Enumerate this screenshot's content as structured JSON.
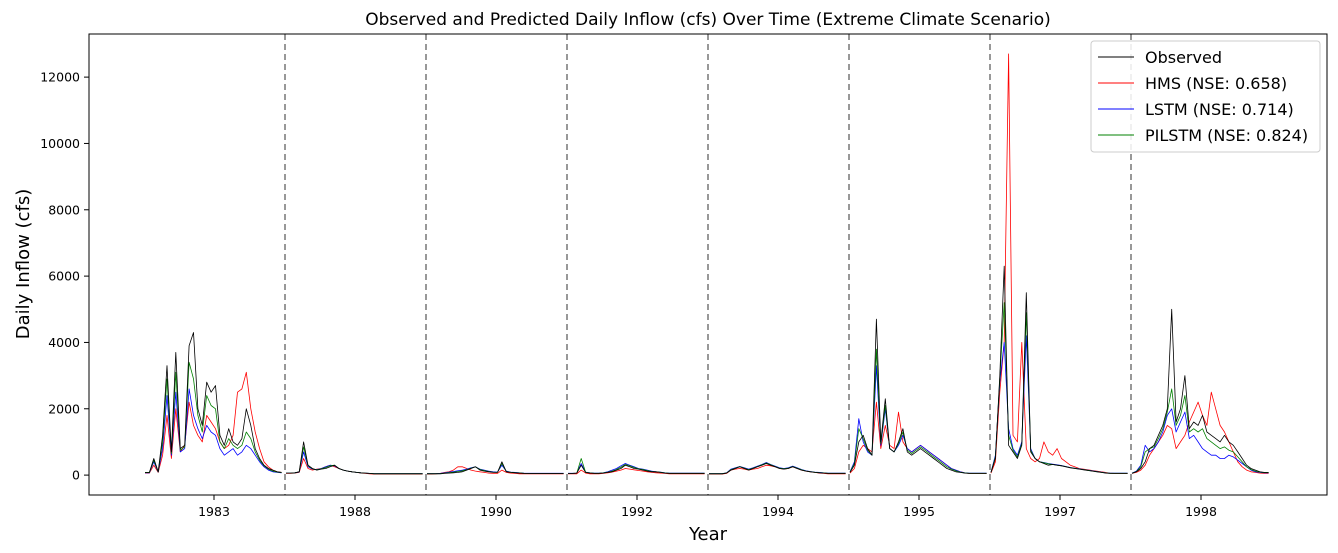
{
  "chart_data": {
    "type": "line",
    "title": "Observed and Predicted Daily Inflow (cfs) Over Time (Extreme Climate Scenario)",
    "xlabel": "Year",
    "ylabel": "Daily Inflow (cfs)",
    "ylim": [
      -600,
      13300
    ],
    "yticks": [
      0,
      2000,
      4000,
      6000,
      8000,
      10000,
      12000
    ],
    "x_tick_labels": [
      "1983",
      "1988",
      "1990",
      "1992",
      "1994",
      "1995",
      "1997",
      "1998"
    ],
    "n_periods": 8,
    "legend_position": "top-right",
    "grid": false,
    "series": [
      {
        "name": "Observed",
        "color": "#000000",
        "periods": [
          [
            80,
            80,
            500,
            100,
            1200,
            3300,
            700,
            3700,
            800,
            900,
            3900,
            4300,
            2000,
            1500,
            2800,
            2500,
            2700,
            1200,
            900,
            1400,
            1000,
            900,
            1100,
            2000,
            1500,
            800,
            500,
            300,
            200,
            150,
            100,
            80
          ],
          [
            60,
            60,
            70,
            100,
            1000,
            300,
            200,
            150,
            180,
            200,
            250,
            300,
            200,
            150,
            120,
            100,
            80,
            70,
            60,
            50,
            40,
            40,
            40,
            40,
            40,
            40,
            40,
            40,
            40,
            40,
            40,
            40
          ],
          [
            40,
            40,
            40,
            40,
            50,
            60,
            70,
            80,
            100,
            150,
            200,
            250,
            150,
            120,
            100,
            80,
            80,
            400,
            100,
            80,
            70,
            60,
            50,
            50,
            50,
            50,
            50,
            50,
            50,
            50,
            50,
            50
          ],
          [
            50,
            50,
            60,
            300,
            80,
            60,
            50,
            50,
            60,
            80,
            100,
            150,
            200,
            300,
            250,
            200,
            180,
            150,
            120,
            100,
            100,
            80,
            60,
            50,
            50,
            50,
            50,
            50,
            50,
            50,
            50,
            50
          ],
          [
            40,
            40,
            40,
            40,
            60,
            150,
            200,
            250,
            200,
            150,
            200,
            250,
            300,
            350,
            300,
            250,
            200,
            180,
            200,
            250,
            200,
            150,
            120,
            100,
            80,
            70,
            60,
            50,
            50,
            50,
            50,
            50
          ],
          [
            80,
            300,
            1000,
            1200,
            800,
            600,
            4700,
            1000,
            2300,
            800,
            700,
            1000,
            1400,
            700,
            600,
            700,
            800,
            700,
            600,
            500,
            400,
            300,
            200,
            150,
            100,
            80,
            60,
            50,
            50,
            50,
            50,
            50
          ],
          [
            80,
            500,
            3000,
            6300,
            900,
            700,
            500,
            900,
            5500,
            700,
            500,
            400,
            350,
            300,
            320,
            300,
            280,
            250,
            220,
            200,
            180,
            160,
            140,
            120,
            100,
            80,
            60,
            50,
            50,
            50,
            50,
            50
          ],
          [
            50,
            100,
            200,
            400,
            800,
            900,
            1200,
            1500,
            2000,
            5000,
            1600,
            2000,
            3000,
            1400,
            1600,
            1500,
            1800,
            1300,
            1200,
            1100,
            1000,
            1200,
            1000,
            900,
            700,
            500,
            300,
            200,
            150,
            100,
            80,
            80
          ]
        ]
      },
      {
        "name": "HMS (NSE: 0.658)",
        "color": "#ff0000",
        "periods": [
          [
            60,
            60,
            300,
            80,
            600,
            1800,
            500,
            2000,
            700,
            900,
            2200,
            1500,
            1200,
            1000,
            1800,
            1600,
            1400,
            1000,
            800,
            900,
            1200,
            2500,
            2600,
            3100,
            2000,
            1300,
            800,
            400,
            250,
            150,
            100,
            80
          ],
          [
            50,
            50,
            60,
            80,
            500,
            200,
            150,
            180,
            200,
            250,
            300,
            250,
            200,
            150,
            120,
            100,
            80,
            60,
            50,
            40,
            30,
            30,
            30,
            30,
            30,
            30,
            30,
            30,
            30,
            30,
            30,
            30
          ],
          [
            30,
            30,
            40,
            50,
            80,
            100,
            150,
            250,
            250,
            200,
            150,
            120,
            100,
            80,
            60,
            50,
            50,
            150,
            80,
            60,
            50,
            40,
            40,
            40,
            40,
            40,
            40,
            40,
            40,
            40,
            40,
            40
          ],
          [
            40,
            40,
            40,
            150,
            60,
            40,
            40,
            40,
            50,
            70,
            90,
            120,
            150,
            200,
            180,
            160,
            140,
            120,
            100,
            80,
            70,
            60,
            50,
            40,
            40,
            40,
            40,
            40,
            40,
            40,
            40,
            40
          ],
          [
            30,
            30,
            30,
            30,
            50,
            150,
            180,
            200,
            180,
            150,
            180,
            200,
            250,
            300,
            280,
            250,
            200,
            180,
            200,
            250,
            200,
            150,
            120,
            100,
            80,
            60,
            50,
            40,
            40,
            40,
            40,
            40
          ],
          [
            60,
            200,
            700,
            900,
            800,
            700,
            2200,
            800,
            1500,
            900,
            800,
            1900,
            1000,
            800,
            700,
            800,
            900,
            800,
            700,
            600,
            500,
            400,
            300,
            200,
            150,
            100,
            70,
            50,
            50,
            50,
            50,
            50
          ],
          [
            60,
            400,
            2500,
            4000,
            12700,
            1200,
            1000,
            4000,
            800,
            500,
            400,
            500,
            1000,
            700,
            600,
            800,
            500,
            400,
            300,
            250,
            200,
            180,
            160,
            140,
            120,
            100,
            80,
            60,
            50,
            50,
            50,
            50
          ],
          [
            50,
            80,
            150,
            300,
            600,
            800,
            1000,
            1200,
            1500,
            1400,
            800,
            1000,
            1200,
            1600,
            1900,
            2200,
            1800,
            1500,
            2500,
            2000,
            1500,
            1300,
            1000,
            700,
            400,
            250,
            150,
            100,
            80,
            60,
            50,
            50
          ]
        ]
      },
      {
        "name": "LSTM (NSE: 0.714)",
        "color": "#0000ff",
        "periods": [
          [
            70,
            70,
            400,
            90,
            800,
            2400,
            600,
            2500,
            700,
            800,
            2600,
            1800,
            1400,
            1100,
            1500,
            1300,
            1200,
            800,
            600,
            700,
            800,
            600,
            700,
            900,
            800,
            600,
            400,
            250,
            150,
            100,
            80,
            70
          ],
          [
            60,
            60,
            70,
            90,
            700,
            250,
            180,
            170,
            200,
            250,
            300,
            280,
            200,
            150,
            120,
            100,
            80,
            70,
            60,
            50,
            45,
            45,
            45,
            45,
            45,
            45,
            45,
            45,
            45,
            45,
            45,
            45
          ],
          [
            45,
            45,
            45,
            50,
            70,
            90,
            110,
            130,
            150,
            180,
            220,
            250,
            180,
            150,
            120,
            100,
            90,
            300,
            120,
            90,
            80,
            70,
            60,
            55,
            55,
            55,
            55,
            55,
            55,
            55,
            55,
            55
          ],
          [
            55,
            55,
            60,
            350,
            90,
            70,
            60,
            60,
            70,
            100,
            150,
            200,
            280,
            350,
            300,
            250,
            200,
            180,
            150,
            120,
            100,
            90,
            70,
            60,
            60,
            60,
            60,
            60,
            60,
            60,
            60,
            60
          ],
          [
            45,
            45,
            45,
            45,
            70,
            180,
            220,
            260,
            220,
            180,
            220,
            270,
            320,
            380,
            320,
            270,
            220,
            200,
            220,
            270,
            220,
            170,
            130,
            110,
            90,
            80,
            70,
            60,
            60,
            60,
            60,
            60
          ],
          [
            100,
            400,
            1700,
            1000,
            700,
            600,
            3300,
            900,
            2000,
            800,
            700,
            900,
            1200,
            800,
            700,
            800,
            900,
            800,
            700,
            600,
            500,
            400,
            300,
            200,
            150,
            100,
            70,
            60,
            60,
            60,
            60,
            60
          ],
          [
            80,
            600,
            2800,
            4000,
            1400,
            800,
            600,
            1000,
            4200,
            800,
            500,
            400,
            380,
            350,
            330,
            310,
            290,
            260,
            230,
            210,
            190,
            170,
            150,
            130,
            110,
            90,
            70,
            60,
            60,
            60,
            60,
            60
          ],
          [
            60,
            120,
            300,
            900,
            700,
            800,
            1000,
            1300,
            1800,
            2000,
            1300,
            1600,
            1900,
            1100,
            1200,
            1000,
            800,
            700,
            600,
            600,
            500,
            500,
            600,
            550,
            450,
            350,
            250,
            150,
            100,
            80,
            70,
            70
          ]
        ]
      },
      {
        "name": "PILSTM (NSE: 0.824)",
        "color": "#008000",
        "periods": [
          [
            75,
            75,
            450,
            95,
            1000,
            2900,
            650,
            3100,
            750,
            850,
            3400,
            2900,
            1800,
            1300,
            2400,
            2100,
            2000,
            1000,
            800,
            1100,
            900,
            800,
            900,
            1300,
            1100,
            700,
            450,
            280,
            180,
            120,
            90,
            75
          ],
          [
            60,
            60,
            70,
            95,
            850,
            280,
            190,
            160,
            190,
            230,
            280,
            300,
            200,
            150,
            120,
            100,
            80,
            70,
            60,
            50,
            42,
            42,
            42,
            42,
            42,
            42,
            42,
            42,
            42,
            42,
            42,
            42
          ],
          [
            42,
            42,
            42,
            45,
            60,
            75,
            90,
            110,
            130,
            160,
            210,
            250,
            170,
            140,
            110,
            90,
            85,
            350,
            110,
            85,
            75,
            65,
            55,
            52,
            52,
            52,
            52,
            52,
            52,
            52,
            52,
            52
          ],
          [
            52,
            52,
            60,
            500,
            85,
            65,
            55,
            55,
            65,
            90,
            120,
            170,
            240,
            320,
            280,
            230,
            190,
            170,
            140,
            110,
            100,
            85,
            65,
            55,
            55,
            55,
            55,
            55,
            55,
            55,
            55,
            55
          ],
          [
            42,
            42,
            42,
            42,
            65,
            165,
            210,
            255,
            210,
            165,
            210,
            260,
            310,
            365,
            310,
            260,
            210,
            190,
            210,
            260,
            210,
            160,
            125,
            105,
            85,
            75,
            65,
            55,
            55,
            55,
            55,
            55
          ],
          [
            90,
            350,
            1400,
            1100,
            750,
            600,
            3800,
            950,
            2100,
            800,
            700,
            950,
            1300,
            750,
            650,
            750,
            850,
            750,
            650,
            550,
            450,
            350,
            250,
            180,
            130,
            90,
            65,
            55,
            55,
            55,
            55,
            55
          ],
          [
            80,
            550,
            2900,
            5200,
            1200,
            750,
            550,
            950,
            4900,
            750,
            500,
            400,
            370,
            340,
            320,
            300,
            280,
            255,
            225,
            205,
            185,
            165,
            145,
            125,
            105,
            85,
            65,
            55,
            55,
            55,
            55,
            55
          ],
          [
            55,
            110,
            250,
            700,
            800,
            850,
            1100,
            1400,
            1900,
            2600,
            1500,
            1800,
            2400,
            1300,
            1400,
            1300,
            1400,
            1100,
            1000,
            900,
            800,
            850,
            750,
            700,
            550,
            400,
            250,
            170,
            120,
            90,
            75,
            75
          ]
        ]
      }
    ]
  }
}
